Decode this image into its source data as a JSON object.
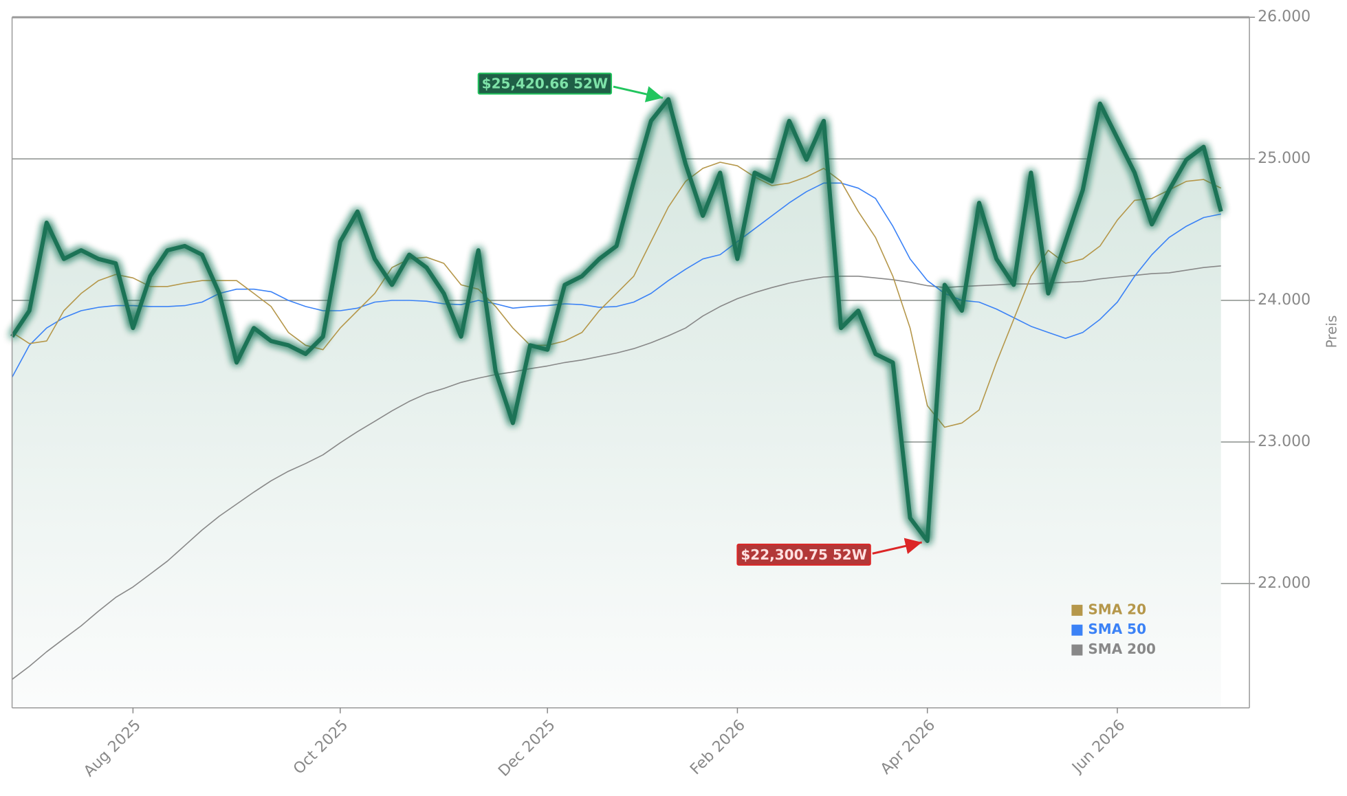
{
  "chart_data": {
    "type": "line",
    "categories": [
      null,
      null,
      null,
      null,
      null,
      null,
      null,
      "Aug 2025",
      null,
      null,
      null,
      null,
      null,
      null,
      null,
      null,
      null,
      null,
      null,
      "Oct 2025",
      null,
      null,
      null,
      null,
      null,
      null,
      null,
      null,
      null,
      null,
      null,
      "Dec 2025",
      null,
      null,
      null,
      null,
      null,
      null,
      null,
      null,
      null,
      null,
      "Feb 2026",
      null,
      null,
      null,
      null,
      null,
      null,
      null,
      null,
      null,
      null,
      "Apr 2026",
      null,
      null,
      null,
      null,
      null,
      null,
      null,
      null,
      null,
      null,
      "Jun 2026",
      null,
      null,
      null,
      null,
      null,
      null
    ],
    "series": [
      {
        "color": "#1b7356",
        "values": [
          23744,
          23927,
          24549,
          24293,
          24354,
          24293,
          24262,
          23805,
          24171,
          24354,
          24384,
          24323,
          24049,
          23561,
          23805,
          23713,
          23683,
          23622,
          23744,
          24415,
          24628,
          24293,
          24110,
          24323,
          24232,
          24049,
          23744,
          24354,
          23500,
          23134,
          23683,
          23652,
          24110,
          24171,
          24293,
          24384,
          24841,
          25268,
          25420.66,
          24963,
          24598,
          24902,
          24293,
          24902,
          24841,
          25268,
          24994,
          25268,
          23805,
          23927,
          23622,
          23561,
          22463,
          22300.75,
          24110,
          23927,
          24689,
          24293,
          24110,
          24902,
          24049,
          24415,
          24780,
          25390,
          25146,
          24902,
          24537,
          24780,
          24994,
          25085,
          24628
        ]
      },
      {
        "name": "SMA 20",
        "color": "#b5974a",
        "values": [
          23774,
          23695,
          23713,
          23927,
          24049,
          24140,
          24183,
          24159,
          24098,
          24098,
          24122,
          24140,
          24140,
          24140,
          24049,
          23957,
          23774,
          23683,
          23652,
          23805,
          23927,
          24049,
          24232,
          24293,
          24305,
          24262,
          24110,
          24079,
          23957,
          23805,
          23683,
          23683,
          23713,
          23774,
          23927,
          24049,
          24171,
          24415,
          24659,
          24841,
          24933,
          24976,
          24951,
          24872,
          24811,
          24829,
          24872,
          24933,
          24841,
          24628,
          24445,
          24171,
          23805,
          23256,
          23104,
          23134,
          23226,
          23561,
          23866,
          24171,
          24354,
          24262,
          24293,
          24384,
          24567,
          24707,
          24720,
          24780,
          24841,
          24854,
          24793
        ]
      },
      {
        "name": "SMA 50",
        "color": "#3b82f6",
        "values": [
          23457,
          23683,
          23805,
          23878,
          23927,
          23951,
          23963,
          23963,
          23957,
          23957,
          23963,
          23988,
          24049,
          24079,
          24079,
          24061,
          24000,
          23957,
          23927,
          23927,
          23945,
          23988,
          24000,
          24000,
          23994,
          23976,
          23970,
          24000,
          23976,
          23945,
          23957,
          23963,
          23976,
          23970,
          23951,
          23957,
          23988,
          24049,
          24140,
          24220,
          24293,
          24323,
          24415,
          24506,
          24598,
          24689,
          24768,
          24829,
          24829,
          24793,
          24720,
          24524,
          24293,
          24140,
          24049,
          24000,
          23988,
          23939,
          23878,
          23817,
          23774,
          23732,
          23774,
          23866,
          23988,
          24171,
          24323,
          24445,
          24524,
          24585,
          24610
        ]
      },
      {
        "name": "SMA 200",
        "color": "#888888",
        "values": [
          21323,
          21415,
          21518,
          21610,
          21701,
          21805,
          21902,
          21976,
          22067,
          22159,
          22268,
          22378,
          22476,
          22561,
          22646,
          22726,
          22793,
          22848,
          22909,
          22994,
          23073,
          23146,
          23220,
          23287,
          23341,
          23378,
          23421,
          23451,
          23476,
          23494,
          23518,
          23537,
          23561,
          23579,
          23604,
          23628,
          23659,
          23701,
          23750,
          23805,
          23890,
          23957,
          24012,
          24055,
          24091,
          24122,
          24146,
          24165,
          24171,
          24171,
          24159,
          24146,
          24128,
          24104,
          24091,
          24098,
          24104,
          24110,
          24116,
          24116,
          24122,
          24128,
          24134,
          24152,
          24165,
          24177,
          24189,
          24195,
          24213,
          24232,
          24244
        ]
      }
    ],
    "ylabel": "Preis",
    "ylim": [
      21122,
      26000
    ],
    "yticks": [
      {
        "value": 22000,
        "label": "22.000"
      },
      {
        "value": 23000,
        "label": "23.000"
      },
      {
        "value": 24000,
        "label": "24.000"
      },
      {
        "value": 25000,
        "label": "25.000"
      },
      {
        "value": 26000,
        "label": "26.000"
      }
    ],
    "grid": true,
    "legend": "lower right",
    "annotations": {
      "high": "$25,420.66 52W",
      "low": "$22,300.75 52W"
    }
  }
}
